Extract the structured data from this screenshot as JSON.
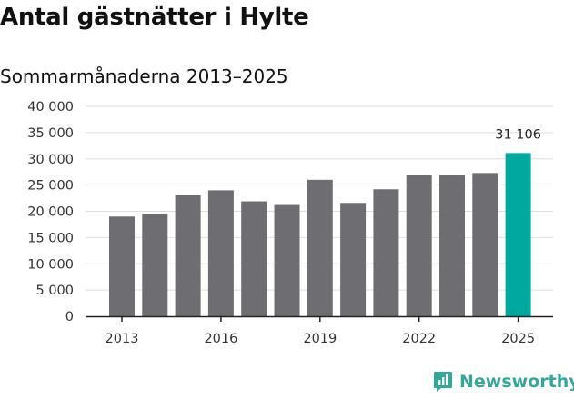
{
  "chart_data": {
    "type": "bar",
    "title": "Antal gästnätter i Hylte",
    "subtitle": "Sommarmånaderna 2013–2025",
    "categories": [
      "2013",
      "2014",
      "2015",
      "2016",
      "2017",
      "2018",
      "2019",
      "2020",
      "2021",
      "2022",
      "2023",
      "2024",
      "2025"
    ],
    "values": [
      19000,
      19500,
      23100,
      24000,
      21900,
      21200,
      26000,
      21600,
      24200,
      27000,
      27000,
      27300,
      31106
    ],
    "x_tick_labels": [
      "2013",
      "2016",
      "2019",
      "2022",
      "2025"
    ],
    "y_ticks": [
      "0",
      "5 000",
      "10 000",
      "15 000",
      "20 000",
      "25 000",
      "30 000",
      "35 000",
      "40 000"
    ],
    "ylim": [
      0,
      40000
    ],
    "highlight_label": "31 106",
    "grid": true,
    "colors": {
      "bar": "#6e6d72",
      "highlight": "#00a89d",
      "grid": "#dedede",
      "axis": "#222222"
    }
  },
  "brand": {
    "name": "Newsworthy",
    "color": "#33a89a",
    "icon": "chart-badge-icon"
  }
}
